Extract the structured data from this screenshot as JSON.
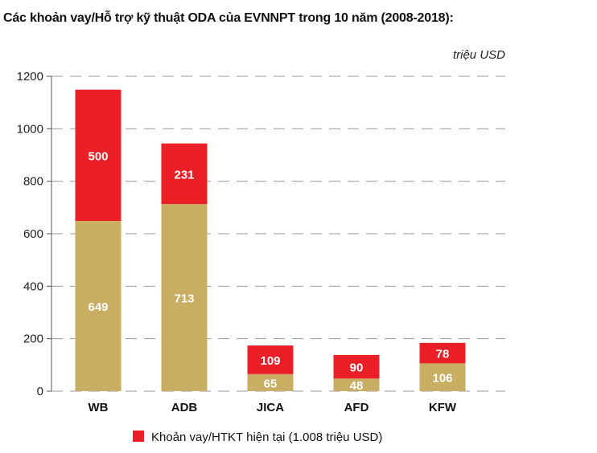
{
  "chart_data": {
    "type": "bar",
    "stacked": true,
    "title": "Các khoản vay/Hỗ trợ kỹ thuật ODA của EVNNPT trong 10 năm (2008-2018):",
    "unit": "triệu USD",
    "categories": [
      "WB",
      "ADB",
      "JICA",
      "AFD",
      "KFW"
    ],
    "series": [
      {
        "values": [
          649,
          713,
          65,
          48,
          106
        ],
        "color": "#c9ad62"
      },
      {
        "name": "Khoản vay/HTKT hiện tại (1.008 triệu USD)",
        "values": [
          500,
          231,
          109,
          90,
          78
        ],
        "color": "#ea1f27"
      }
    ],
    "ylim": [
      0,
      1200
    ],
    "yticks": [
      "0",
      "200",
      "400",
      "600",
      "800",
      "1000",
      "1200"
    ],
    "grid": true,
    "grid_style": "dashed",
    "legend": "bottom"
  }
}
